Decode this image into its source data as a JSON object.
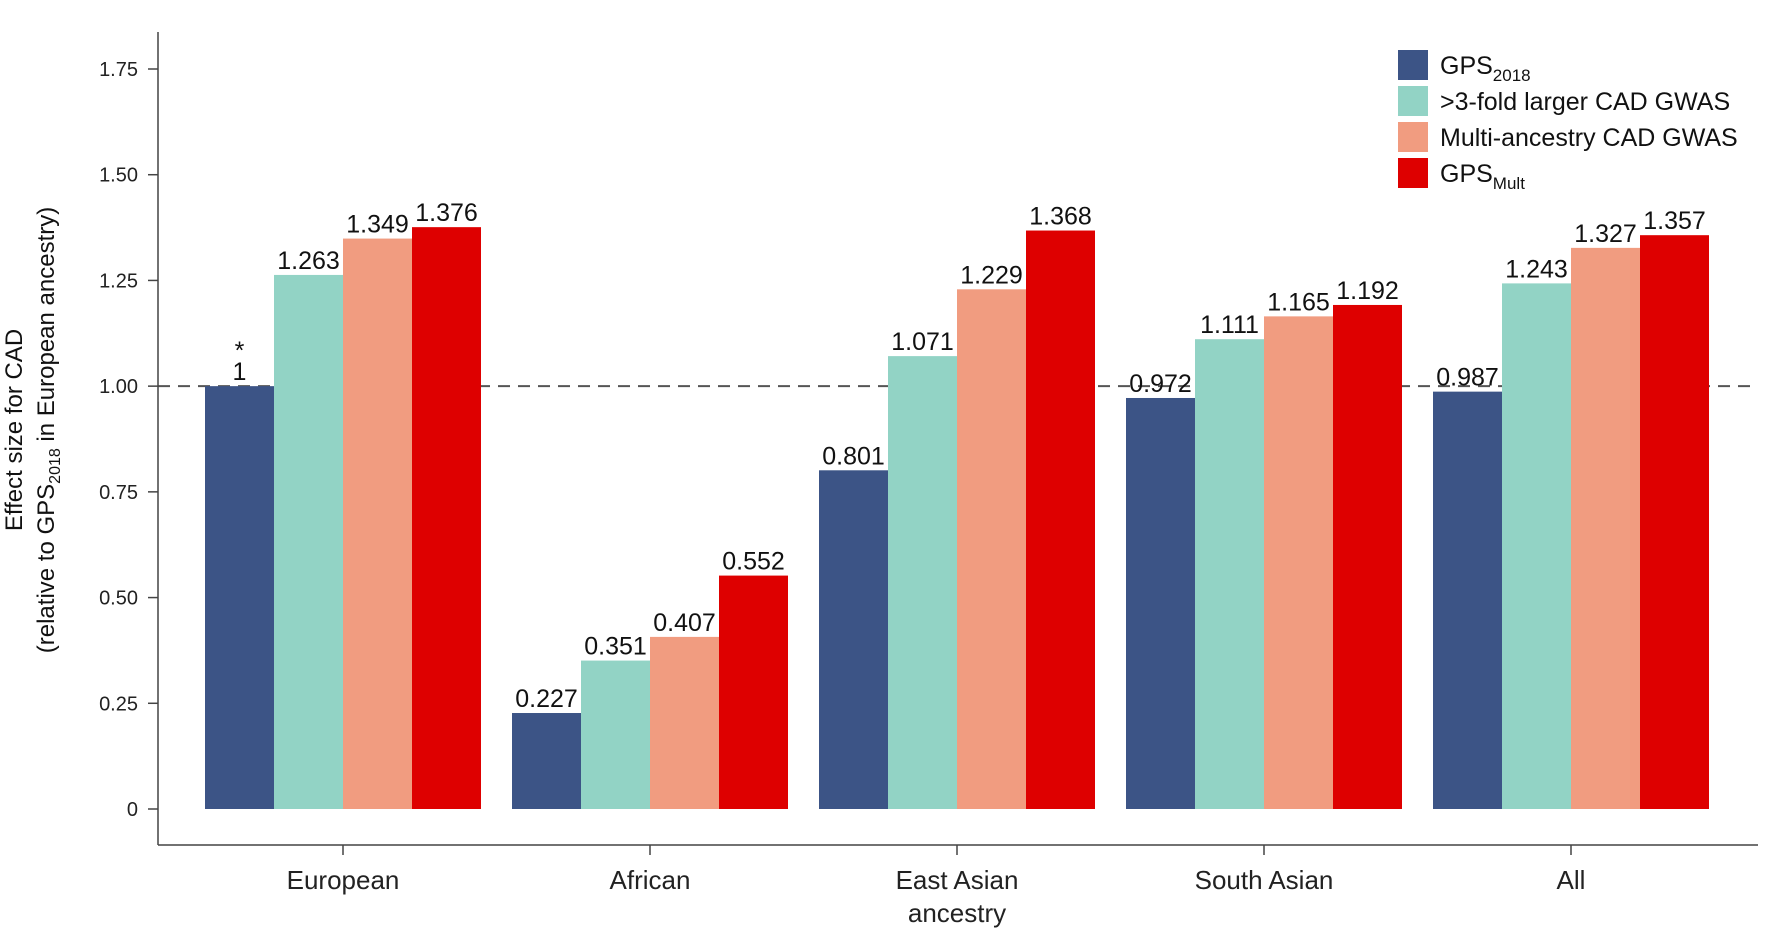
{
  "chart_data": {
    "type": "bar",
    "categories": [
      "European",
      "African",
      "East Asian",
      "South Asian",
      "All"
    ],
    "xlabel": "ancestry",
    "ylabel_line1": "Effect size for CAD",
    "ylabel_line2": {
      "pre": "(relative to GPS",
      "sub": "2018",
      "post": " in European ancestry)"
    },
    "ylim": [
      0,
      1.8
    ],
    "yticks": [
      0,
      0.25,
      0.5,
      0.75,
      1.0,
      1.25,
      1.5,
      1.75
    ],
    "ytick_labels": [
      "0",
      "0.25",
      "0.50",
      "0.75",
      "1.00",
      "1.25",
      "1.50",
      "1.75"
    ],
    "reference_line": {
      "y": 1.0,
      "style": "dashed"
    },
    "annotation": {
      "text": "*",
      "category": "European",
      "series_index": 0
    },
    "legend_position": "top-right",
    "series": [
      {
        "name": "GPS",
        "name_sub": "2018",
        "color": "#3c5486",
        "values": [
          1,
          0.227,
          0.801,
          0.972,
          0.987
        ],
        "labels": [
          "1",
          "0.227",
          "0.801",
          "0.972",
          "0.987"
        ]
      },
      {
        "name": ">3-fold larger CAD GWAS",
        "name_sub": "",
        "color": "#92d3c5",
        "values": [
          1.263,
          0.351,
          1.071,
          1.111,
          1.243
        ],
        "labels": [
          "1.263",
          "0.351",
          "1.071",
          "1.111",
          "1.243"
        ]
      },
      {
        "name": "Multi-ancestry CAD GWAS",
        "name_sub": "",
        "color": "#f19c80",
        "values": [
          1.349,
          0.407,
          1.229,
          1.165,
          1.327
        ],
        "labels": [
          "1.349",
          "0.407",
          "1.229",
          "1.165",
          "1.327"
        ]
      },
      {
        "name": "GPS",
        "name_sub": "Mult",
        "color": "#de0000",
        "values": [
          1.376,
          0.552,
          1.368,
          1.192,
          1.357
        ],
        "labels": [
          "1.376",
          "0.552",
          "1.368",
          "1.192",
          "1.357"
        ]
      }
    ]
  }
}
